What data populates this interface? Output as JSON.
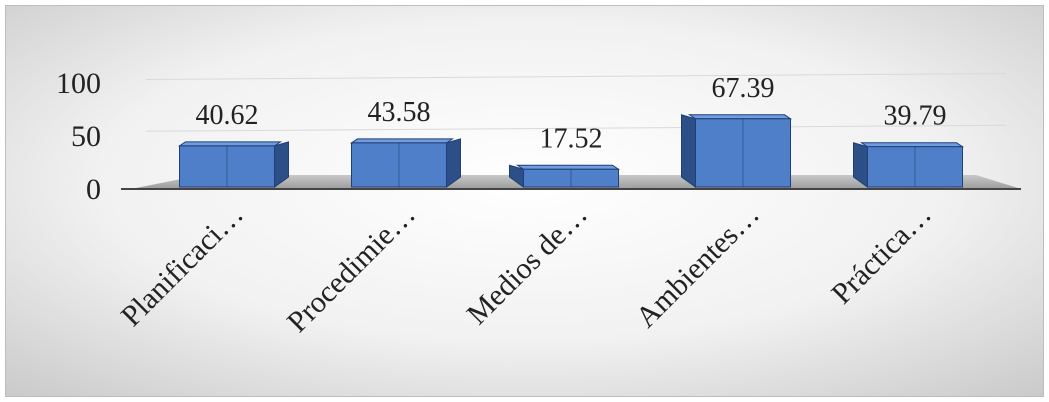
{
  "chart_data": {
    "type": "bar",
    "style": "3d-column",
    "categories": [
      "Planificaci…",
      "Procedimie…",
      "Medios de…",
      "Ambientes…",
      "Práctica…"
    ],
    "values": [
      40.62,
      43.58,
      17.52,
      67.39,
      39.79
    ],
    "value_labels": [
      "40.62",
      "43.58",
      "17.52",
      "67.39",
      "39.79"
    ],
    "y_ticks": [
      {
        "value": 0,
        "label": "0"
      },
      {
        "value": 50,
        "label": "50"
      },
      {
        "value": 100,
        "label": "100"
      }
    ],
    "ylim": [
      0,
      100
    ],
    "title": "",
    "xlabel": "",
    "ylabel": "",
    "legend": "none",
    "grid": true,
    "colors": {
      "bar_front": "#4f7fc9",
      "bar_side": "#2b4f86",
      "bar_top": "#6f9ee0",
      "bar_edge": "#1f3f75",
      "floor": "#9a9a9a",
      "axis": "#444444",
      "grid": "#d9d9d9",
      "text": "#222222"
    }
  }
}
